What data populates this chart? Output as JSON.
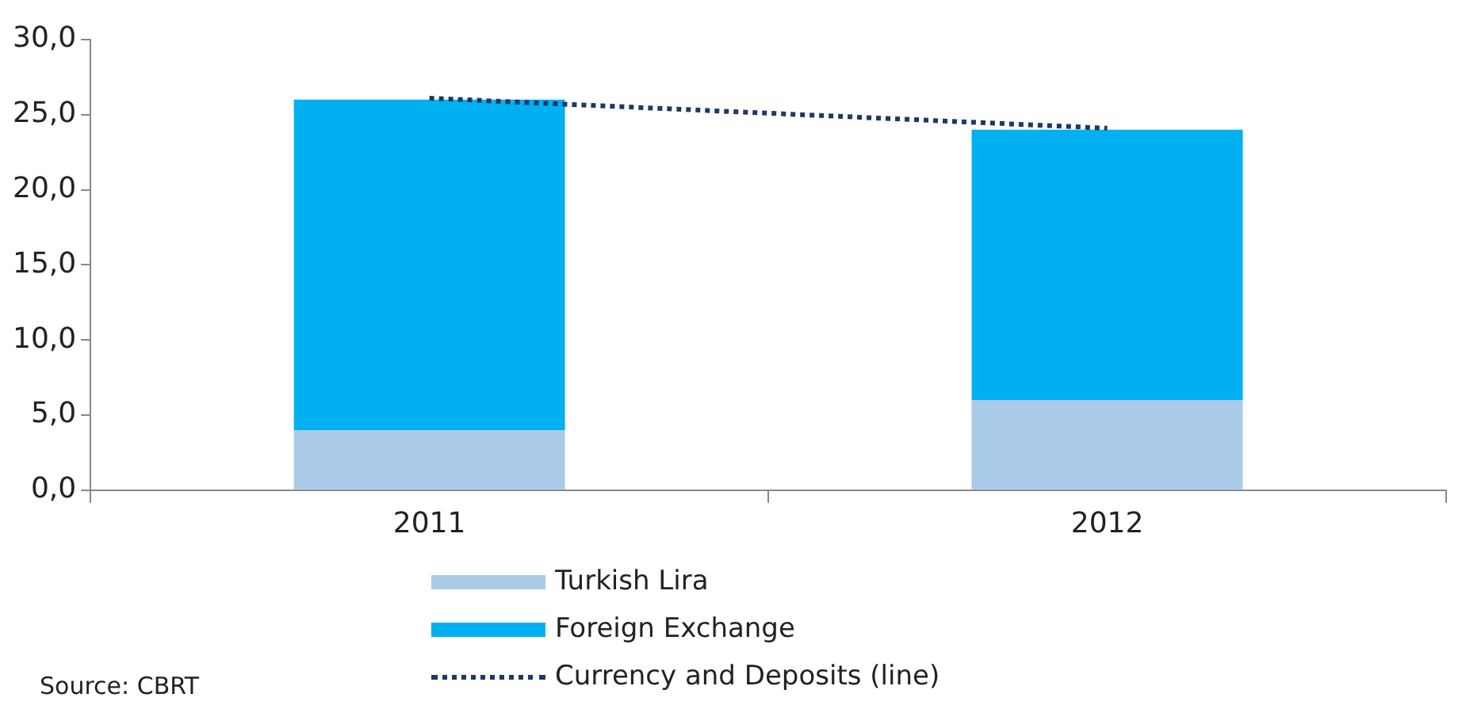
{
  "chart_data": {
    "type": "bar",
    "stacked": true,
    "categories": [
      "2011",
      "2012"
    ],
    "series": [
      {
        "name": "Turkish Lira",
        "color": "#a9cbe8",
        "values": [
          4.0,
          6.0
        ]
      },
      {
        "name": "Foreign Exchange",
        "color": "#00b0f0",
        "values": [
          22.0,
          18.0
        ]
      },
      {
        "name": "Currency and Deposits (line)",
        "type": "line",
        "color": "#1f3864",
        "values": [
          26.1,
          24.1
        ],
        "line_style": "dotted",
        "marker": "none"
      }
    ],
    "ylim": [
      0,
      30
    ],
    "yticks": [
      {
        "value": 0,
        "label": "0,0"
      },
      {
        "value": 5,
        "label": "5,0"
      },
      {
        "value": 10,
        "label": "10,0"
      },
      {
        "value": 15,
        "label": "15,0"
      },
      {
        "value": 20,
        "label": "20,0"
      },
      {
        "value": 25,
        "label": "25,0"
      },
      {
        "value": 30,
        "label": "30,0"
      }
    ],
    "grid": false,
    "legend": "bottom",
    "annotations": [
      "Source: CBRT"
    ]
  }
}
